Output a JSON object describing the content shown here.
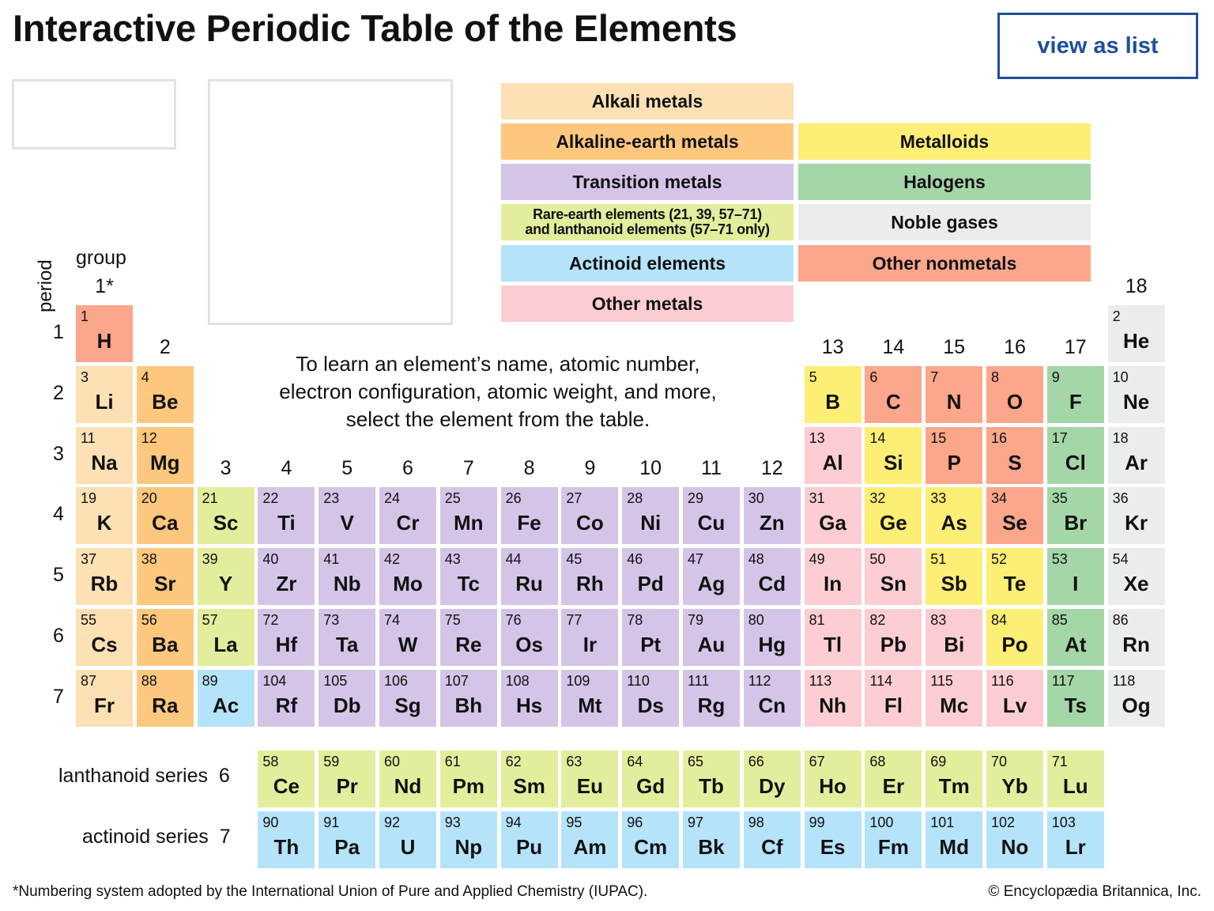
{
  "header": {
    "title": "Interactive Periodic Table of the Elements",
    "view_list_label": "view as list"
  },
  "colors": {
    "alkali": "#fde0b3",
    "alkaline_earth": "#fdc87e",
    "transition": "#d4c5e8",
    "rare_earth": "#e4ed9c",
    "actinoid": "#b5e3f9",
    "other_metal": "#fdcdd3",
    "metalloid": "#fdee75",
    "halogen": "#a5d6a8",
    "noble": "#ececec",
    "nonmetal": "#fca68b",
    "accent": "#1f4f9c"
  },
  "legend": {
    "alkali": "Alkali metals",
    "alkaline_earth": "Alkaline-earth metals",
    "transition": "Transition metals",
    "rare_earth_line1": "Rare-earth elements (21, 39, 57–71)",
    "rare_earth_line2": "and lanthanoid elements (57–71 only)",
    "actinoid": "Actinoid elements",
    "other_metal": "Other metals",
    "metalloid": "Metalloids",
    "halogen": "Halogens",
    "noble": "Noble gases",
    "nonmetal": "Other nonmetals"
  },
  "axis": {
    "period_label": "period",
    "group_label": "group",
    "groups": [
      "1*",
      "2",
      "3",
      "4",
      "5",
      "6",
      "7",
      "8",
      "9",
      "10",
      "11",
      "12",
      "13",
      "14",
      "15",
      "16",
      "17",
      "18"
    ],
    "periods": [
      "1",
      "2",
      "3",
      "4",
      "5",
      "6",
      "7"
    ]
  },
  "instructions": {
    "line1": "To learn an element’s name, atomic number,",
    "line2": "electron configuration, atomic weight, and more,",
    "line3": "select the element from the table."
  },
  "series": {
    "lanthanoid_label": "lanthanoid series",
    "lanthanoid_period": "6",
    "actinoid_label": "actinoid series",
    "actinoid_period": "7"
  },
  "footer": {
    "note": "*Numbering system adopted by the International Union of Pure and Applied Chemistry (IUPAC).",
    "copyright": "© Encyclopædia Britannica, Inc."
  },
  "elements": [
    {
      "n": "1",
      "s": "H",
      "p": 1,
      "g": 1,
      "c": "nonmetal"
    },
    {
      "n": "2",
      "s": "He",
      "p": 1,
      "g": 18,
      "c": "noble"
    },
    {
      "n": "3",
      "s": "Li",
      "p": 2,
      "g": 1,
      "c": "alkali"
    },
    {
      "n": "4",
      "s": "Be",
      "p": 2,
      "g": 2,
      "c": "alkaline_earth"
    },
    {
      "n": "5",
      "s": "B",
      "p": 2,
      "g": 13,
      "c": "metalloid"
    },
    {
      "n": "6",
      "s": "C",
      "p": 2,
      "g": 14,
      "c": "nonmetal"
    },
    {
      "n": "7",
      "s": "N",
      "p": 2,
      "g": 15,
      "c": "nonmetal"
    },
    {
      "n": "8",
      "s": "O",
      "p": 2,
      "g": 16,
      "c": "nonmetal"
    },
    {
      "n": "9",
      "s": "F",
      "p": 2,
      "g": 17,
      "c": "halogen"
    },
    {
      "n": "10",
      "s": "Ne",
      "p": 2,
      "g": 18,
      "c": "noble"
    },
    {
      "n": "11",
      "s": "Na",
      "p": 3,
      "g": 1,
      "c": "alkali"
    },
    {
      "n": "12",
      "s": "Mg",
      "p": 3,
      "g": 2,
      "c": "alkaline_earth"
    },
    {
      "n": "13",
      "s": "Al",
      "p": 3,
      "g": 13,
      "c": "other_metal"
    },
    {
      "n": "14",
      "s": "Si",
      "p": 3,
      "g": 14,
      "c": "metalloid"
    },
    {
      "n": "15",
      "s": "P",
      "p": 3,
      "g": 15,
      "c": "nonmetal"
    },
    {
      "n": "16",
      "s": "S",
      "p": 3,
      "g": 16,
      "c": "nonmetal"
    },
    {
      "n": "17",
      "s": "Cl",
      "p": 3,
      "g": 17,
      "c": "halogen"
    },
    {
      "n": "18",
      "s": "Ar",
      "p": 3,
      "g": 18,
      "c": "noble"
    },
    {
      "n": "19",
      "s": "K",
      "p": 4,
      "g": 1,
      "c": "alkali"
    },
    {
      "n": "20",
      "s": "Ca",
      "p": 4,
      "g": 2,
      "c": "alkaline_earth"
    },
    {
      "n": "21",
      "s": "Sc",
      "p": 4,
      "g": 3,
      "c": "rare_earth"
    },
    {
      "n": "22",
      "s": "Ti",
      "p": 4,
      "g": 4,
      "c": "transition"
    },
    {
      "n": "23",
      "s": "V",
      "p": 4,
      "g": 5,
      "c": "transition"
    },
    {
      "n": "24",
      "s": "Cr",
      "p": 4,
      "g": 6,
      "c": "transition"
    },
    {
      "n": "25",
      "s": "Mn",
      "p": 4,
      "g": 7,
      "c": "transition"
    },
    {
      "n": "26",
      "s": "Fe",
      "p": 4,
      "g": 8,
      "c": "transition"
    },
    {
      "n": "27",
      "s": "Co",
      "p": 4,
      "g": 9,
      "c": "transition"
    },
    {
      "n": "28",
      "s": "Ni",
      "p": 4,
      "g": 10,
      "c": "transition"
    },
    {
      "n": "29",
      "s": "Cu",
      "p": 4,
      "g": 11,
      "c": "transition"
    },
    {
      "n": "30",
      "s": "Zn",
      "p": 4,
      "g": 12,
      "c": "transition"
    },
    {
      "n": "31",
      "s": "Ga",
      "p": 4,
      "g": 13,
      "c": "other_metal"
    },
    {
      "n": "32",
      "s": "Ge",
      "p": 4,
      "g": 14,
      "c": "metalloid"
    },
    {
      "n": "33",
      "s": "As",
      "p": 4,
      "g": 15,
      "c": "metalloid"
    },
    {
      "n": "34",
      "s": "Se",
      "p": 4,
      "g": 16,
      "c": "nonmetal"
    },
    {
      "n": "35",
      "s": "Br",
      "p": 4,
      "g": 17,
      "c": "halogen"
    },
    {
      "n": "36",
      "s": "Kr",
      "p": 4,
      "g": 18,
      "c": "noble"
    },
    {
      "n": "37",
      "s": "Rb",
      "p": 5,
      "g": 1,
      "c": "alkali"
    },
    {
      "n": "38",
      "s": "Sr",
      "p": 5,
      "g": 2,
      "c": "alkaline_earth"
    },
    {
      "n": "39",
      "s": "Y",
      "p": 5,
      "g": 3,
      "c": "rare_earth"
    },
    {
      "n": "40",
      "s": "Zr",
      "p": 5,
      "g": 4,
      "c": "transition"
    },
    {
      "n": "41",
      "s": "Nb",
      "p": 5,
      "g": 5,
      "c": "transition"
    },
    {
      "n": "42",
      "s": "Mo",
      "p": 5,
      "g": 6,
      "c": "transition"
    },
    {
      "n": "43",
      "s": "Tc",
      "p": 5,
      "g": 7,
      "c": "transition"
    },
    {
      "n": "44",
      "s": "Ru",
      "p": 5,
      "g": 8,
      "c": "transition"
    },
    {
      "n": "45",
      "s": "Rh",
      "p": 5,
      "g": 9,
      "c": "transition"
    },
    {
      "n": "46",
      "s": "Pd",
      "p": 5,
      "g": 10,
      "c": "transition"
    },
    {
      "n": "47",
      "s": "Ag",
      "p": 5,
      "g": 11,
      "c": "transition"
    },
    {
      "n": "48",
      "s": "Cd",
      "p": 5,
      "g": 12,
      "c": "transition"
    },
    {
      "n": "49",
      "s": "In",
      "p": 5,
      "g": 13,
      "c": "other_metal"
    },
    {
      "n": "50",
      "s": "Sn",
      "p": 5,
      "g": 14,
      "c": "other_metal"
    },
    {
      "n": "51",
      "s": "Sb",
      "p": 5,
      "g": 15,
      "c": "metalloid"
    },
    {
      "n": "52",
      "s": "Te",
      "p": 5,
      "g": 16,
      "c": "metalloid"
    },
    {
      "n": "53",
      "s": "I",
      "p": 5,
      "g": 17,
      "c": "halogen"
    },
    {
      "n": "54",
      "s": "Xe",
      "p": 5,
      "g": 18,
      "c": "noble"
    },
    {
      "n": "55",
      "s": "Cs",
      "p": 6,
      "g": 1,
      "c": "alkali"
    },
    {
      "n": "56",
      "s": "Ba",
      "p": 6,
      "g": 2,
      "c": "alkaline_earth"
    },
    {
      "n": "57",
      "s": "La",
      "p": 6,
      "g": 3,
      "c": "rare_earth"
    },
    {
      "n": "72",
      "s": "Hf",
      "p": 6,
      "g": 4,
      "c": "transition"
    },
    {
      "n": "73",
      "s": "Ta",
      "p": 6,
      "g": 5,
      "c": "transition"
    },
    {
      "n": "74",
      "s": "W",
      "p": 6,
      "g": 6,
      "c": "transition"
    },
    {
      "n": "75",
      "s": "Re",
      "p": 6,
      "g": 7,
      "c": "transition"
    },
    {
      "n": "76",
      "s": "Os",
      "p": 6,
      "g": 8,
      "c": "transition"
    },
    {
      "n": "77",
      "s": "Ir",
      "p": 6,
      "g": 9,
      "c": "transition"
    },
    {
      "n": "78",
      "s": "Pt",
      "p": 6,
      "g": 10,
      "c": "transition"
    },
    {
      "n": "79",
      "s": "Au",
      "p": 6,
      "g": 11,
      "c": "transition"
    },
    {
      "n": "80",
      "s": "Hg",
      "p": 6,
      "g": 12,
      "c": "transition"
    },
    {
      "n": "81",
      "s": "Tl",
      "p": 6,
      "g": 13,
      "c": "other_metal"
    },
    {
      "n": "82",
      "s": "Pb",
      "p": 6,
      "g": 14,
      "c": "other_metal"
    },
    {
      "n": "83",
      "s": "Bi",
      "p": 6,
      "g": 15,
      "c": "other_metal"
    },
    {
      "n": "84",
      "s": "Po",
      "p": 6,
      "g": 16,
      "c": "metalloid"
    },
    {
      "n": "85",
      "s": "At",
      "p": 6,
      "g": 17,
      "c": "halogen"
    },
    {
      "n": "86",
      "s": "Rn",
      "p": 6,
      "g": 18,
      "c": "noble"
    },
    {
      "n": "87",
      "s": "Fr",
      "p": 7,
      "g": 1,
      "c": "alkali"
    },
    {
      "n": "88",
      "s": "Ra",
      "p": 7,
      "g": 2,
      "c": "alkaline_earth"
    },
    {
      "n": "89",
      "s": "Ac",
      "p": 7,
      "g": 3,
      "c": "actinoid"
    },
    {
      "n": "104",
      "s": "Rf",
      "p": 7,
      "g": 4,
      "c": "transition"
    },
    {
      "n": "105",
      "s": "Db",
      "p": 7,
      "g": 5,
      "c": "transition"
    },
    {
      "n": "106",
      "s": "Sg",
      "p": 7,
      "g": 6,
      "c": "transition"
    },
    {
      "n": "107",
      "s": "Bh",
      "p": 7,
      "g": 7,
      "c": "transition"
    },
    {
      "n": "108",
      "s": "Hs",
      "p": 7,
      "g": 8,
      "c": "transition"
    },
    {
      "n": "109",
      "s": "Mt",
      "p": 7,
      "g": 9,
      "c": "transition"
    },
    {
      "n": "110",
      "s": "Ds",
      "p": 7,
      "g": 10,
      "c": "transition"
    },
    {
      "n": "111",
      "s": "Rg",
      "p": 7,
      "g": 11,
      "c": "transition"
    },
    {
      "n": "112",
      "s": "Cn",
      "p": 7,
      "g": 12,
      "c": "transition"
    },
    {
      "n": "113",
      "s": "Nh",
      "p": 7,
      "g": 13,
      "c": "other_metal"
    },
    {
      "n": "114",
      "s": "Fl",
      "p": 7,
      "g": 14,
      "c": "other_metal"
    },
    {
      "n": "115",
      "s": "Mc",
      "p": 7,
      "g": 15,
      "c": "other_metal"
    },
    {
      "n": "116",
      "s": "Lv",
      "p": 7,
      "g": 16,
      "c": "other_metal"
    },
    {
      "n": "117",
      "s": "Ts",
      "p": 7,
      "g": 17,
      "c": "halogen"
    },
    {
      "n": "118",
      "s": "Og",
      "p": 7,
      "g": 18,
      "c": "noble"
    }
  ],
  "lanthanoids": [
    {
      "n": "58",
      "s": "Ce"
    },
    {
      "n": "59",
      "s": "Pr"
    },
    {
      "n": "60",
      "s": "Nd"
    },
    {
      "n": "61",
      "s": "Pm"
    },
    {
      "n": "62",
      "s": "Sm"
    },
    {
      "n": "63",
      "s": "Eu"
    },
    {
      "n": "64",
      "s": "Gd"
    },
    {
      "n": "65",
      "s": "Tb"
    },
    {
      "n": "66",
      "s": "Dy"
    },
    {
      "n": "67",
      "s": "Ho"
    },
    {
      "n": "68",
      "s": "Er"
    },
    {
      "n": "69",
      "s": "Tm"
    },
    {
      "n": "70",
      "s": "Yb"
    },
    {
      "n": "71",
      "s": "Lu"
    }
  ],
  "actinoids": [
    {
      "n": "90",
      "s": "Th"
    },
    {
      "n": "91",
      "s": "Pa"
    },
    {
      "n": "92",
      "s": "U"
    },
    {
      "n": "93",
      "s": "Np"
    },
    {
      "n": "94",
      "s": "Pu"
    },
    {
      "n": "95",
      "s": "Am"
    },
    {
      "n": "96",
      "s": "Cm"
    },
    {
      "n": "97",
      "s": "Bk"
    },
    {
      "n": "98",
      "s": "Cf"
    },
    {
      "n": "99",
      "s": "Es"
    },
    {
      "n": "100",
      "s": "Fm"
    },
    {
      "n": "101",
      "s": "Md"
    },
    {
      "n": "102",
      "s": "No"
    },
    {
      "n": "103",
      "s": "Lr"
    }
  ]
}
